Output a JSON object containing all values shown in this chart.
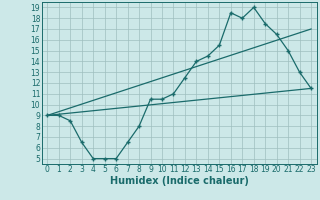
{
  "xlabel": "Humidex (Indice chaleur)",
  "xlim": [
    -0.5,
    23.5
  ],
  "ylim": [
    4.5,
    19.5
  ],
  "xticks": [
    0,
    1,
    2,
    3,
    4,
    5,
    6,
    7,
    8,
    9,
    10,
    11,
    12,
    13,
    14,
    15,
    16,
    17,
    18,
    19,
    20,
    21,
    22,
    23
  ],
  "yticks": [
    5,
    6,
    7,
    8,
    9,
    10,
    11,
    12,
    13,
    14,
    15,
    16,
    17,
    18,
    19
  ],
  "bg_color": "#cce8e8",
  "grid_color": "#9fbfbf",
  "line_color": "#1a6b6b",
  "line1_x": [
    0,
    1,
    2,
    3,
    4,
    5,
    6,
    7,
    8,
    9,
    10,
    11,
    12,
    13,
    14,
    15,
    16,
    17,
    18,
    19,
    20,
    21,
    22,
    23
  ],
  "line1_y": [
    9,
    9,
    8.5,
    6.5,
    5,
    5,
    5,
    6.5,
    8,
    10.5,
    10.5,
    11,
    12.5,
    14,
    14.5,
    15.5,
    18.5,
    18,
    19,
    17.5,
    16.5,
    15,
    13,
    11.5
  ],
  "line2_x": [
    0,
    23
  ],
  "line2_y": [
    9,
    11.5
  ],
  "line3_x": [
    0,
    23
  ],
  "line3_y": [
    9,
    17
  ],
  "font_color": "#1a6b6b",
  "tick_fontsize": 5.5,
  "label_fontsize": 7
}
